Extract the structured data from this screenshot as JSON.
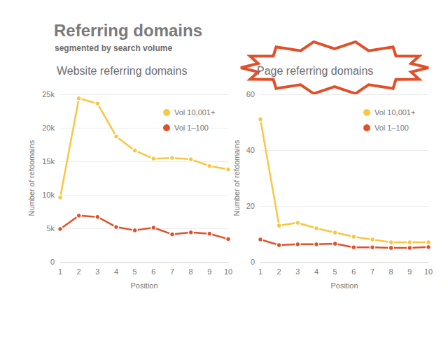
{
  "title": "Referring domains",
  "subtitle": "segmented by search volume",
  "chart_data": [
    {
      "type": "line",
      "title": "Website referring domains",
      "x_label": "Position",
      "y_label": "Number of refdomains",
      "x": [
        1,
        2,
        3,
        4,
        5,
        6,
        7,
        8,
        9,
        10
      ],
      "xlim": [
        1,
        10
      ],
      "xticks": [
        1,
        2,
        3,
        4,
        5,
        6,
        7,
        8,
        9,
        10
      ],
      "ylim": [
        0,
        25000
      ],
      "yticks": [
        0,
        {
          "value": 5000,
          "label": "5k"
        },
        {
          "value": 10000,
          "label": "10k"
        },
        {
          "value": 15000,
          "label": "15k"
        },
        {
          "value": 20000,
          "label": "20k"
        },
        {
          "value": 25000,
          "label": "25k"
        }
      ],
      "grid": true,
      "legend": "upper right",
      "marker": "circle",
      "series": [
        {
          "name": "Vol 10,001+",
          "color": "#f9c642",
          "values": [
            9600,
            24400,
            23600,
            18700,
            16600,
            15400,
            15500,
            15300,
            14300,
            13800
          ]
        },
        {
          "name": "Vol 1–100",
          "color": "#e0502a",
          "values": [
            4900,
            6900,
            6700,
            5200,
            4700,
            5100,
            4100,
            4400,
            4200,
            3400
          ]
        }
      ]
    },
    {
      "type": "line",
      "title": "Page referring domains",
      "x_label": "Position",
      "y_label": "Number of refdomains",
      "x": [
        1,
        2,
        3,
        4,
        5,
        6,
        7,
        8,
        9,
        10
      ],
      "xlim": [
        1,
        10
      ],
      "xticks": [
        1,
        2,
        3,
        4,
        5,
        6,
        7,
        8,
        9,
        10
      ],
      "ylim": [
        0,
        60
      ],
      "yticks": [
        0,
        20,
        40,
        60
      ],
      "grid": true,
      "legend": "upper right",
      "marker": "circle",
      "series": [
        {
          "name": "Vol 10,001+",
          "color": "#f9c642",
          "values": [
            51,
            13,
            14,
            12,
            10.5,
            9,
            8,
            7,
            7,
            7
          ]
        },
        {
          "name": "Vol 1–100",
          "color": "#e0502a",
          "values": [
            8,
            6,
            6.3,
            6.3,
            6.5,
            5.2,
            5.2,
            5,
            5,
            5.3
          ]
        }
      ]
    }
  ]
}
